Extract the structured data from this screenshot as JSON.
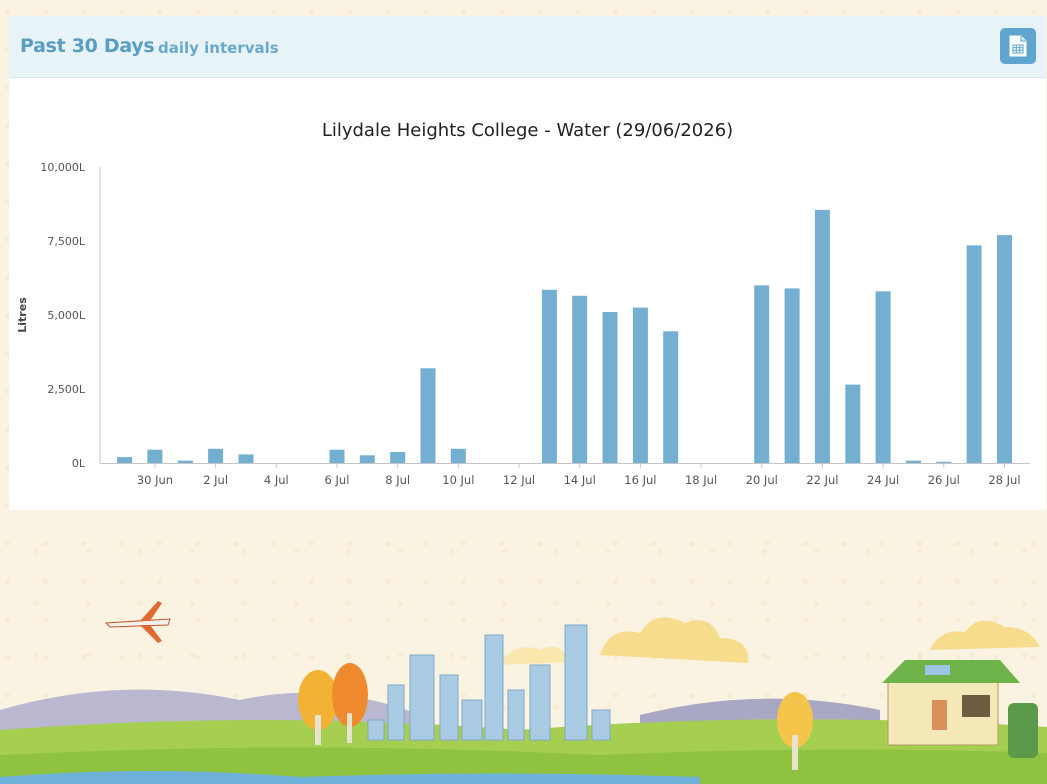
{
  "header": {
    "title": "Past 30 Days",
    "subtitle": "daily intervals",
    "export_icon": "spreadsheet-icon"
  },
  "colors": {
    "bar": "#74aed0",
    "header_bg": "#e8f3f7",
    "accent": "#5a9dc3"
  },
  "chart_data": {
    "type": "bar",
    "title": "Lilydale Heights College - Water (29/06/2026)",
    "ylabel": "Litres",
    "xlabel": "",
    "ylim": [
      0,
      10000
    ],
    "yticks": [
      "0L",
      "2,500L",
      "5,000L",
      "7,500L",
      "10,000L"
    ],
    "ytick_values": [
      0,
      2500,
      5000,
      7500,
      10000
    ],
    "x_tick_labels": [
      "30 Jun",
      "2 Jul",
      "4 Jul",
      "6 Jul",
      "8 Jul",
      "10 Jul",
      "12 Jul",
      "14 Jul",
      "16 Jul",
      "18 Jul",
      "20 Jul",
      "22 Jul",
      "24 Jul",
      "26 Jul",
      "28 Jul"
    ],
    "categories": [
      "29 Jun",
      "30 Jun",
      "1 Jul",
      "2 Jul",
      "3 Jul",
      "4 Jul",
      "5 Jul",
      "6 Jul",
      "7 Jul",
      "8 Jul",
      "9 Jul",
      "10 Jul",
      "11 Jul",
      "12 Jul",
      "13 Jul",
      "14 Jul",
      "15 Jul",
      "16 Jul",
      "17 Jul",
      "18 Jul",
      "19 Jul",
      "20 Jul",
      "21 Jul",
      "22 Jul",
      "23 Jul",
      "24 Jul",
      "25 Jul",
      "26 Jul",
      "27 Jul",
      "28 Jul"
    ],
    "values": [
      200,
      450,
      80,
      480,
      290,
      0,
      0,
      450,
      260,
      370,
      3200,
      480,
      0,
      0,
      5850,
      5650,
      5100,
      5250,
      4450,
      0,
      0,
      6000,
      5900,
      8550,
      2650,
      5800,
      80,
      40,
      7350,
      7700
    ],
    "grid": false,
    "legend": "none"
  }
}
